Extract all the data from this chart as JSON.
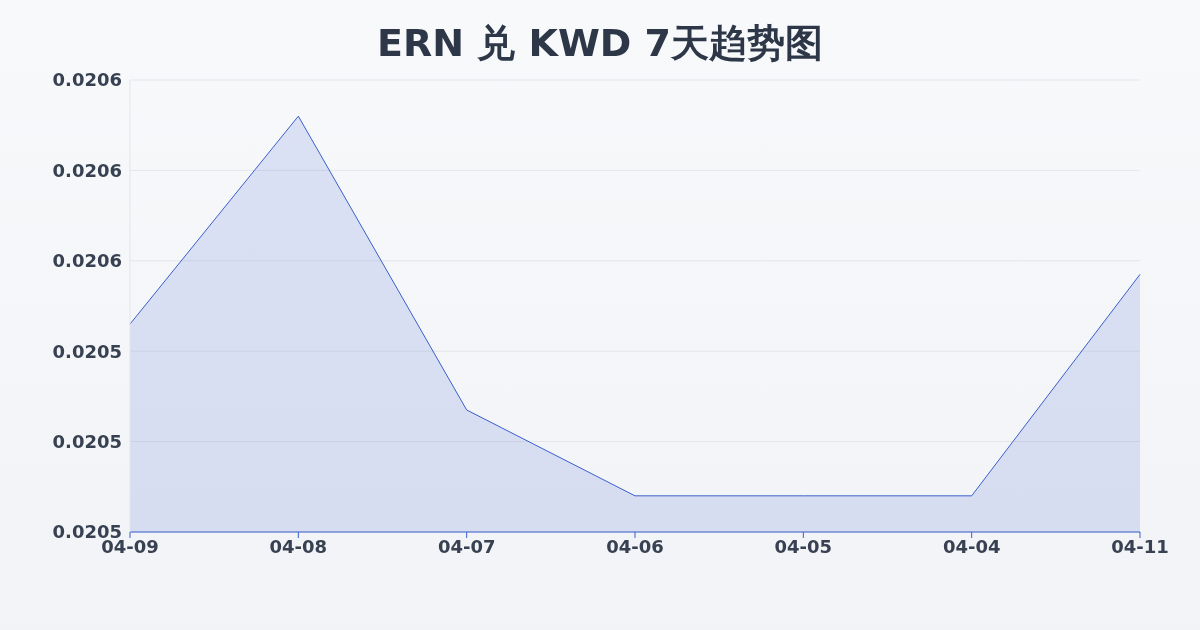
{
  "chart_data": {
    "type": "area",
    "title": "ERN 兑 KWD 7天趋势图",
    "categories": [
      "04-09",
      "04-08",
      "04-07",
      "04-06",
      "04-05",
      "04-04",
      "04-11"
    ],
    "series": [
      {
        "color": "#3a5fcd",
        "values": [
          0.020546,
          0.020592,
          0.020527,
          0.020508,
          0.020508,
          0.020508,
          0.020557
        ]
      }
    ],
    "ylim": [
      0.0205,
      0.0206
    ],
    "yticks": [
      {
        "value": 0.0205,
        "label": "0.0205"
      },
      {
        "value": 0.02052,
        "label": "0.0205"
      },
      {
        "value": 0.02054,
        "label": "0.0205"
      },
      {
        "value": 0.02056,
        "label": "0.0206"
      },
      {
        "value": 0.02058,
        "label": "0.0206"
      },
      {
        "value": 0.0206,
        "label": "0.0206"
      }
    ],
    "grid": "y"
  }
}
